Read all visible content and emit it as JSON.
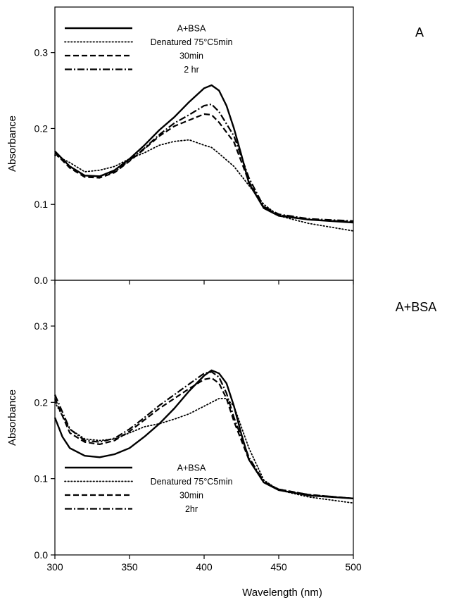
{
  "xlabel": "Wavelength (nm)",
  "chart_data": [
    {
      "type": "line",
      "panel_label": "A",
      "ylabel": "Absorbance",
      "xlim": [
        300,
        500
      ],
      "ylim": [
        0,
        0.36
      ],
      "x_ticks": [
        "300",
        "350",
        "400",
        "450",
        "500"
      ],
      "y_ticks": [
        "0.0",
        "0.1",
        "0.2",
        "0.3"
      ],
      "y_tick_values": [
        0,
        0.1,
        0.2,
        0.3
      ],
      "legend_position": "top-left",
      "series": [
        {
          "name": "A+BSA",
          "style": "solid",
          "points": [
            [
              300,
              0.17
            ],
            [
              310,
              0.15
            ],
            [
              320,
              0.138
            ],
            [
              330,
              0.137
            ],
            [
              340,
              0.145
            ],
            [
              350,
              0.16
            ],
            [
              360,
              0.178
            ],
            [
              370,
              0.198
            ],
            [
              380,
              0.215
            ],
            [
              390,
              0.235
            ],
            [
              400,
              0.253
            ],
            [
              405,
              0.257
            ],
            [
              410,
              0.25
            ],
            [
              415,
              0.23
            ],
            [
              420,
              0.2
            ],
            [
              425,
              0.165
            ],
            [
              430,
              0.128
            ],
            [
              440,
              0.095
            ],
            [
              450,
              0.085
            ],
            [
              470,
              0.08
            ],
            [
              500,
              0.076
            ]
          ]
        },
        {
          "name": "Denatured 75°C5min",
          "style": "dotted",
          "points": [
            [
              300,
              0.165
            ],
            [
              310,
              0.155
            ],
            [
              320,
              0.143
            ],
            [
              330,
              0.145
            ],
            [
              340,
              0.15
            ],
            [
              350,
              0.16
            ],
            [
              360,
              0.168
            ],
            [
              370,
              0.178
            ],
            [
              380,
              0.183
            ],
            [
              390,
              0.185
            ],
            [
              400,
              0.178
            ],
            [
              405,
              0.175
            ],
            [
              410,
              0.167
            ],
            [
              420,
              0.15
            ],
            [
              430,
              0.125
            ],
            [
              440,
              0.1
            ],
            [
              450,
              0.085
            ],
            [
              470,
              0.075
            ],
            [
              500,
              0.065
            ]
          ]
        },
        {
          "name": "30min",
          "style": "dashed",
          "points": [
            [
              300,
              0.168
            ],
            [
              310,
              0.148
            ],
            [
              320,
              0.136
            ],
            [
              330,
              0.135
            ],
            [
              340,
              0.142
            ],
            [
              350,
              0.157
            ],
            [
              360,
              0.173
            ],
            [
              370,
              0.19
            ],
            [
              380,
              0.203
            ],
            [
              390,
              0.211
            ],
            [
              400,
              0.219
            ],
            [
              405,
              0.218
            ],
            [
              410,
              0.208
            ],
            [
              420,
              0.182
            ],
            [
              430,
              0.13
            ],
            [
              440,
              0.096
            ],
            [
              450,
              0.086
            ],
            [
              470,
              0.08
            ],
            [
              500,
              0.077
            ]
          ]
        },
        {
          "name": "2 hr",
          "style": "dashdot",
          "points": [
            [
              300,
              0.17
            ],
            [
              310,
              0.15
            ],
            [
              320,
              0.138
            ],
            [
              330,
              0.137
            ],
            [
              340,
              0.143
            ],
            [
              350,
              0.158
            ],
            [
              360,
              0.174
            ],
            [
              370,
              0.192
            ],
            [
              380,
              0.207
            ],
            [
              390,
              0.218
            ],
            [
              400,
              0.23
            ],
            [
              405,
              0.232
            ],
            [
              410,
              0.222
            ],
            [
              420,
              0.19
            ],
            [
              430,
              0.135
            ],
            [
              440,
              0.097
            ],
            [
              450,
              0.087
            ],
            [
              470,
              0.081
            ],
            [
              500,
              0.078
            ]
          ]
        }
      ]
    },
    {
      "type": "line",
      "panel_label": "A+BSA",
      "ylabel": "Absorbance",
      "xlim": [
        300,
        500
      ],
      "ylim": [
        0,
        0.36
      ],
      "x_ticks": [
        "300",
        "350",
        "400",
        "450",
        "500"
      ],
      "y_ticks": [
        "0.0",
        "0.1",
        "0.2",
        "0.3"
      ],
      "y_tick_values": [
        0,
        0.1,
        0.2,
        0.3
      ],
      "legend_position": "bottom-left",
      "series": [
        {
          "name": "A+BSA",
          "style": "solid",
          "points": [
            [
              300,
              0.18
            ],
            [
              305,
              0.155
            ],
            [
              310,
              0.14
            ],
            [
              320,
              0.13
            ],
            [
              330,
              0.128
            ],
            [
              340,
              0.132
            ],
            [
              350,
              0.14
            ],
            [
              360,
              0.155
            ],
            [
              370,
              0.172
            ],
            [
              380,
              0.192
            ],
            [
              390,
              0.215
            ],
            [
              400,
              0.235
            ],
            [
              405,
              0.242
            ],
            [
              410,
              0.238
            ],
            [
              415,
              0.225
            ],
            [
              420,
              0.195
            ],
            [
              425,
              0.158
            ],
            [
              430,
              0.125
            ],
            [
              440,
              0.095
            ],
            [
              450,
              0.085
            ],
            [
              470,
              0.078
            ],
            [
              500,
              0.074
            ]
          ]
        },
        {
          "name": "Denatured 75°C5min",
          "style": "dotted",
          "points": [
            [
              300,
              0.2
            ],
            [
              310,
              0.165
            ],
            [
              320,
              0.152
            ],
            [
              330,
              0.15
            ],
            [
              340,
              0.152
            ],
            [
              350,
              0.16
            ],
            [
              360,
              0.168
            ],
            [
              370,
              0.172
            ],
            [
              380,
              0.178
            ],
            [
              390,
              0.185
            ],
            [
              400,
              0.195
            ],
            [
              410,
              0.205
            ],
            [
              415,
              0.205
            ],
            [
              420,
              0.195
            ],
            [
              430,
              0.14
            ],
            [
              440,
              0.098
            ],
            [
              450,
              0.085
            ],
            [
              470,
              0.076
            ],
            [
              500,
              0.068
            ]
          ]
        },
        {
          "name": "30min",
          "style": "dashed",
          "points": [
            [
              300,
              0.205
            ],
            [
              310,
              0.16
            ],
            [
              320,
              0.148
            ],
            [
              330,
              0.145
            ],
            [
              340,
              0.15
            ],
            [
              350,
              0.162
            ],
            [
              360,
              0.177
            ],
            [
              370,
              0.192
            ],
            [
              380,
              0.205
            ],
            [
              390,
              0.218
            ],
            [
              400,
              0.23
            ],
            [
              405,
              0.232
            ],
            [
              410,
              0.225
            ],
            [
              415,
              0.205
            ],
            [
              420,
              0.175
            ],
            [
              430,
              0.125
            ],
            [
              440,
              0.095
            ],
            [
              450,
              0.086
            ],
            [
              470,
              0.079
            ],
            [
              500,
              0.074
            ]
          ]
        },
        {
          "name": "2hr",
          "style": "dashdot",
          "points": [
            [
              300,
              0.21
            ],
            [
              310,
              0.165
            ],
            [
              320,
              0.15
            ],
            [
              330,
              0.148
            ],
            [
              340,
              0.153
            ],
            [
              350,
              0.165
            ],
            [
              360,
              0.18
            ],
            [
              370,
              0.196
            ],
            [
              380,
              0.21
            ],
            [
              390,
              0.224
            ],
            [
              400,
              0.238
            ],
            [
              405,
              0.24
            ],
            [
              410,
              0.233
            ],
            [
              415,
              0.212
            ],
            [
              420,
              0.18
            ],
            [
              430,
              0.128
            ],
            [
              440,
              0.096
            ],
            [
              450,
              0.086
            ],
            [
              470,
              0.079
            ],
            [
              500,
              0.074
            ]
          ]
        }
      ]
    }
  ]
}
